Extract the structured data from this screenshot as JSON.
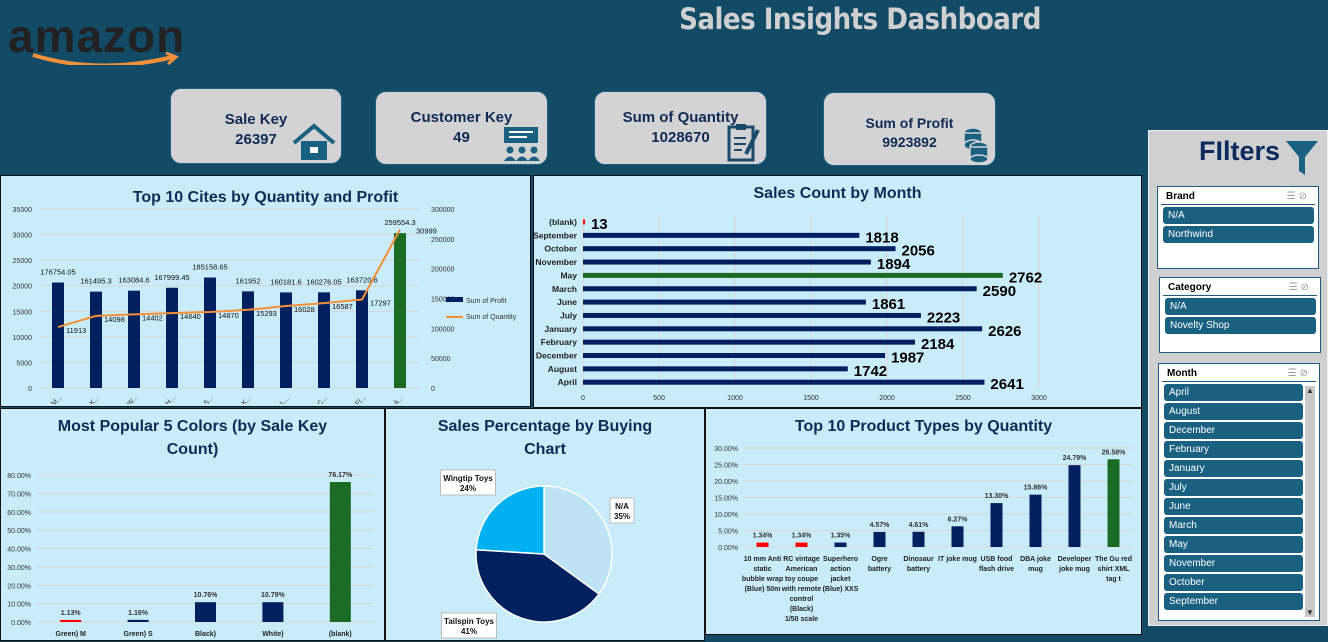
{
  "header": {
    "title": "Sales Insights Dashboard",
    "logo_text": "amazon"
  },
  "kpis": [
    {
      "label": "Sale Key",
      "value": "26397",
      "icon": "house-icon"
    },
    {
      "label": "Customer Key",
      "value": "49",
      "icon": "presentation-people-icon"
    },
    {
      "label": "Sum of Quantity",
      "value": "1028670",
      "icon": "clipboard-edit-icon"
    },
    {
      "label": "Sum of Profit",
      "value": "9923892",
      "icon": "coins-icon"
    }
  ],
  "colors": {
    "navy": "#002060",
    "green": "#1b6b25",
    "red": "#ff0000",
    "orange": "#f4903a",
    "bg": "#134a65",
    "panel": "#c9ecfa"
  },
  "filters": {
    "title": "FIlters",
    "icon": "funnel-icon",
    "brand": {
      "label": "Brand",
      "items": [
        "N/A",
        "Northwind"
      ]
    },
    "category": {
      "label": "Category",
      "items": [
        "N/A",
        "Novelty Shop"
      ]
    },
    "month": {
      "label": "Month",
      "items": [
        "April",
        "August",
        "December",
        "February",
        "January",
        "July",
        "June",
        "March",
        "May",
        "November",
        "October",
        "September"
      ]
    }
  },
  "chart_data": [
    {
      "type": "bar+line",
      "title": "Top 10 Cites by Quantity and Profit",
      "categories": [
        "M...",
        "K...",
        "W...",
        "H...",
        "S...",
        "K...",
        "L...",
        "C...",
        "Fl...",
        "A..."
      ],
      "series": [
        {
          "name": "Sum of Profit",
          "axis": "right",
          "type": "bar",
          "values": [
            176754.05,
            161495.3,
            163084.6,
            167999.45,
            185158.65,
            161952,
            160181.6,
            160276.05,
            163720.6,
            259554.3
          ]
        },
        {
          "name": "Sum of Quantity",
          "axis": "left",
          "type": "line",
          "values": [
            11913,
            14098,
            14402,
            14640,
            14870,
            15293,
            16028,
            16587,
            17297,
            30999
          ]
        }
      ],
      "left_ticks": [
        "0",
        "5000",
        "10000",
        "15000",
        "20000",
        "25000",
        "30000",
        "35000"
      ],
      "ylim_left": [
        0,
        35000
      ],
      "right_ticks": [
        "0",
        "50000",
        "100000",
        "150000",
        "200000",
        "250000",
        "300000"
      ],
      "ylim_right": [
        0,
        300000
      ],
      "legend": "right",
      "grid": true
    },
    {
      "type": "bar",
      "orientation": "horizontal",
      "title": "Sales Count by Month",
      "categories": [
        "(blank)",
        "September",
        "October",
        "November",
        "May",
        "March",
        "June",
        "July",
        "January",
        "February",
        "December",
        "August",
        "April"
      ],
      "values": [
        13,
        1818,
        2056,
        1894,
        2762,
        2590,
        1861,
        2223,
        2626,
        2184,
        1987,
        1742,
        2641
      ],
      "xlim": [
        0,
        3000
      ],
      "ticks": [
        "0",
        "500",
        "1000",
        "1500",
        "2000",
        "2500",
        "3000"
      ],
      "grid": true
    },
    {
      "type": "bar",
      "title": "Most Popular 5 Colors (by Sale Key Count)",
      "categories": [
        "Green) M",
        "Green) S",
        "Black)",
        "White)",
        "(blank)"
      ],
      "values": [
        1.13,
        1.16,
        10.76,
        10.79,
        76.17
      ],
      "labels": [
        "1.13%",
        "1.16%",
        "10.76%",
        "10.79%",
        "76.17%"
      ],
      "ylim": [
        0,
        80
      ],
      "ticks": [
        "0.00%",
        "10.00%",
        "20.00%",
        "30.00%",
        "40.00%",
        "50.00%",
        "60.00%",
        "70.00%",
        "80.00%"
      ]
    },
    {
      "type": "pie",
      "title": "Sales Percentage by Buying Chart",
      "slices": [
        {
          "name": "N/A",
          "value": 35,
          "label": "35%",
          "color": "#bde3f5"
        },
        {
          "name": "Tailspin Toys",
          "value": 41,
          "label": "41%",
          "color": "#002060"
        },
        {
          "name": "Wingtip Toys",
          "value": 24,
          "label": "24%",
          "color": "#00b0f0"
        }
      ]
    },
    {
      "type": "bar",
      "title": "Top 10 Product Types by Quantity",
      "categories": [
        "10 mm Anti static bubble wrap (Blue) 50m",
        "RC vintage American toy coupe with remote control (Black) 1/50 scale",
        "Superhero action jacket (Blue) XXS",
        "Ogre battery",
        "Dinosaur battery",
        "IT joke mug",
        "USB food flash drive",
        "DBA joke mug",
        "Developer joke mug",
        "The Gu red shirt XML tag t"
      ],
      "values": [
        1.34,
        1.34,
        1.35,
        4.57,
        4.61,
        6.27,
        13.3,
        15.86,
        24.79,
        26.58
      ],
      "labels": [
        "1.34%",
        "1.34%",
        "1.35%",
        "4.57%",
        "4.61%",
        "6.27%",
        "13.30%",
        "15.86%",
        "24.79%",
        "26.58%"
      ],
      "ylim": [
        0,
        30
      ],
      "ticks": [
        "0.00%",
        "5.00%",
        "10.00%",
        "15.00%",
        "20.00%",
        "25.00%",
        "30.00%"
      ]
    }
  ]
}
